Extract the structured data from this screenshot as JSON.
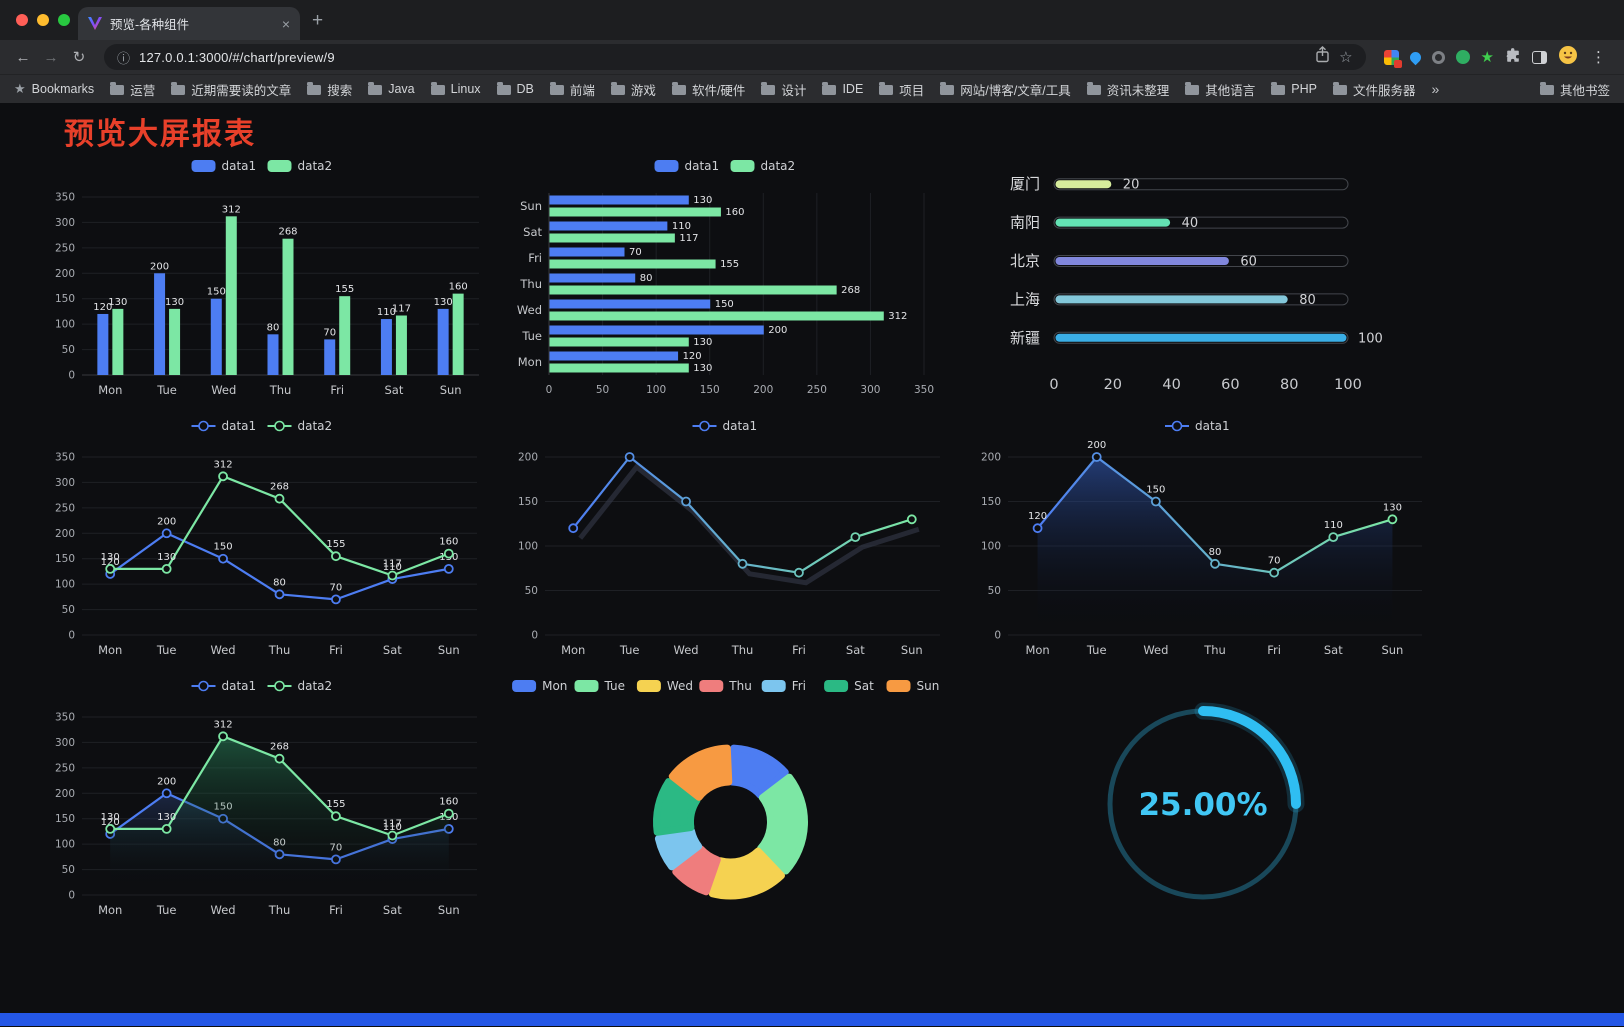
{
  "browser": {
    "tab_title": "预览-各种组件",
    "url": "127.0.0.1:3000/#/chart/preview/9",
    "bookmarks_label": "Bookmarks",
    "bookmarks": [
      "运营",
      "近期需要读的文章",
      "搜索",
      "Java",
      "Linux",
      "DB",
      "前端",
      "游戏",
      "软件/硬件",
      "设计",
      "IDE",
      "项目",
      "网站/博客/文章/工具",
      "资讯未整理",
      "其他语言",
      "PHP",
      "文件服务器"
    ],
    "overflow_chevron": "»",
    "other_bookmarks": "其他书签",
    "icons": {
      "back": "←",
      "forward": "→",
      "reload": "↻",
      "info": "ⓘ",
      "star": "☆",
      "star_filled": "★",
      "new_tab": "+",
      "close_tab": "×",
      "menu": "⋮"
    }
  },
  "page": {
    "title": "预览大屏报表",
    "accent_red": "#e8402a",
    "background": "#0d0e11",
    "bottom_bar_color": "#2457e6"
  },
  "chart_data": [
    {
      "type": "bar",
      "categories": [
        "Mon",
        "Tue",
        "Wed",
        "Thu",
        "Fri",
        "Sat",
        "Sun"
      ],
      "series": [
        {
          "name": "data1",
          "color": "#4d7df2",
          "values": [
            120,
            200,
            150,
            80,
            70,
            110,
            130
          ]
        },
        {
          "name": "data2",
          "color": "#7ce7a4",
          "values": [
            130,
            130,
            312,
            268,
            155,
            117,
            160
          ]
        }
      ],
      "ylim": [
        0,
        350
      ],
      "yticks": [
        0,
        50,
        100,
        150,
        200,
        250,
        300,
        350
      ],
      "legend": true,
      "value_labels": true,
      "grid": true
    },
    {
      "type": "bar-horizontal",
      "categories": [
        "Mon",
        "Tue",
        "Wed",
        "Thu",
        "Fri",
        "Sat",
        "Sun"
      ],
      "category_order_top_to_bottom": [
        "Sun",
        "Sat",
        "Fri",
        "Thu",
        "Wed",
        "Tue",
        "Mon"
      ],
      "series": [
        {
          "name": "data1",
          "color": "#4d7df2",
          "values": [
            120,
            200,
            150,
            80,
            70,
            110,
            130
          ]
        },
        {
          "name": "data2",
          "color": "#7ce7a4",
          "values": [
            130,
            130,
            312,
            268,
            155,
            117,
            160
          ]
        }
      ],
      "xlim": [
        0,
        350
      ],
      "xticks": [
        0,
        50,
        100,
        150,
        200,
        250,
        300,
        350
      ],
      "legend": true,
      "value_labels": true,
      "grid": true
    },
    {
      "type": "progress-bars",
      "items": [
        {
          "label": "厦门",
          "value": 20,
          "color": "#d6ec9c"
        },
        {
          "label": "南阳",
          "value": 40,
          "color": "#63e2b4"
        },
        {
          "label": "北京",
          "value": 60,
          "color": "#8187dd"
        },
        {
          "label": "上海",
          "value": 80,
          "color": "#83c7da"
        },
        {
          "label": "新疆",
          "value": 100,
          "color": "#3aaee6"
        }
      ],
      "xlim": [
        0,
        100
      ],
      "xticks": [
        0,
        20,
        40,
        60,
        80,
        100
      ]
    },
    {
      "type": "line",
      "categories": [
        "Mon",
        "Tue",
        "Wed",
        "Thu",
        "Fri",
        "Sat",
        "Sun"
      ],
      "series": [
        {
          "name": "data1",
          "color": "#4d7df2",
          "values": [
            120,
            200,
            150,
            80,
            70,
            110,
            130
          ],
          "labels": true
        },
        {
          "name": "data2",
          "color": "#7ce7a4",
          "values": [
            130,
            130,
            312,
            268,
            155,
            117,
            160
          ],
          "labels": true
        }
      ],
      "ylim": [
        0,
        350
      ],
      "yticks": [
        0,
        50,
        100,
        150,
        200,
        250,
        300,
        350
      ],
      "legend": true,
      "grid": true
    },
    {
      "type": "line",
      "categories": [
        "Mon",
        "Tue",
        "Wed",
        "Thu",
        "Fri",
        "Sat",
        "Sun"
      ],
      "series": [
        {
          "name": "data1",
          "color": "#4d7df2",
          "color_end": "#7ce7a4",
          "gradient_stroke": true,
          "shadow": true,
          "values": [
            120,
            200,
            150,
            80,
            70,
            110,
            130
          ],
          "labels": false
        }
      ],
      "ylim": [
        0,
        200
      ],
      "yticks": [
        0,
        50,
        100,
        150,
        200
      ],
      "legend": true,
      "grid": true
    },
    {
      "type": "line",
      "categories": [
        "Mon",
        "Tue",
        "Wed",
        "Thu",
        "Fri",
        "Sat",
        "Sun"
      ],
      "series": [
        {
          "name": "data1",
          "color": "#4d7df2",
          "color_end": "#7ce7a4",
          "gradient_stroke": true,
          "area": "rgba(54,98,200,0.55)",
          "values": [
            120,
            200,
            150,
            80,
            70,
            110,
            130
          ],
          "labels": true
        }
      ],
      "ylim": [
        0,
        200
      ],
      "yticks": [
        0,
        50,
        100,
        150,
        200
      ],
      "legend": true,
      "grid": true
    },
    {
      "type": "line",
      "categories": [
        "Mon",
        "Tue",
        "Wed",
        "Thu",
        "Fri",
        "Sat",
        "Sun"
      ],
      "series": [
        {
          "name": "data1",
          "color": "#4d7df2",
          "area": "rgba(62,96,180,0.30)",
          "values": [
            120,
            200,
            150,
            80,
            70,
            110,
            130
          ],
          "labels": true
        },
        {
          "name": "data2",
          "color": "#7ce7a4",
          "area": "rgba(47,158,106,0.45)",
          "values": [
            130,
            130,
            312,
            268,
            155,
            117,
            160
          ],
          "labels": true
        }
      ],
      "ylim": [
        0,
        350
      ],
      "yticks": [
        0,
        50,
        100,
        150,
        200,
        250,
        300,
        350
      ],
      "legend": true,
      "grid": true
    },
    {
      "type": "donut",
      "legend": true,
      "items": [
        {
          "label": "Mon",
          "value": 120,
          "color": "#4d7df2"
        },
        {
          "label": "Tue",
          "value": 200,
          "color": "#7ce7a4"
        },
        {
          "label": "Wed",
          "value": 150,
          "color": "#f5d251"
        },
        {
          "label": "Thu",
          "value": 80,
          "color": "#ef7d7d"
        },
        {
          "label": "Fri",
          "value": 70,
          "color": "#7cc5ee"
        },
        {
          "label": "Sat",
          "value": 110,
          "color": "#2bb984"
        },
        {
          "label": "Sun",
          "value": 130,
          "color": "#f79a42"
        }
      ]
    },
    {
      "type": "gauge",
      "value": 25,
      "value_label": "25.00%",
      "color": "#2fbef2",
      "track_color": "#19485a",
      "text_color": "#41c7f5"
    }
  ]
}
